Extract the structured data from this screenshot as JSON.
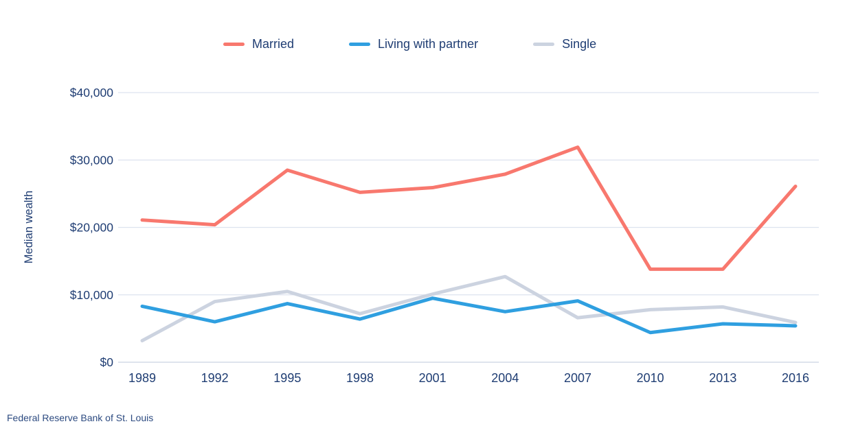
{
  "chart_data": {
    "type": "line",
    "title": "",
    "ylabel": "Median wealth",
    "xlabel": "",
    "x": [
      "1989",
      "1992",
      "1995",
      "1998",
      "2001",
      "2004",
      "2007",
      "2010",
      "2013",
      "2016"
    ],
    "y_ticks": [
      {
        "value": 0,
        "label": "$0"
      },
      {
        "value": 10000,
        "label": "$10,000"
      },
      {
        "value": 20000,
        "label": "$20,000"
      },
      {
        "value": 30000,
        "label": "$30,000"
      },
      {
        "value": 40000,
        "label": "$40,000"
      }
    ],
    "ylim": [
      0,
      40000
    ],
    "grid": true,
    "legend_position": "top",
    "series": [
      {
        "name": "Married",
        "color": "#f8786e",
        "values": [
          21100,
          20400,
          28500,
          25200,
          25900,
          27900,
          31900,
          13800,
          13800,
          26100
        ]
      },
      {
        "name": "Living with partner",
        "color": "#2f9fe0",
        "values": [
          8300,
          6000,
          8700,
          6400,
          9500,
          7500,
          9100,
          4400,
          5700,
          5400
        ]
      },
      {
        "name": "Single",
        "color": "#ccd3e0",
        "values": [
          3200,
          9000,
          10500,
          7200,
          10100,
          12700,
          6600,
          7800,
          8200,
          5900
        ]
      }
    ]
  },
  "source": "Federal Reserve Bank of St. Louis",
  "colors": {
    "text": "#1f3d73",
    "grid": "#dde3ef",
    "axis": "#c9d2e2",
    "background": "#ffffff"
  }
}
